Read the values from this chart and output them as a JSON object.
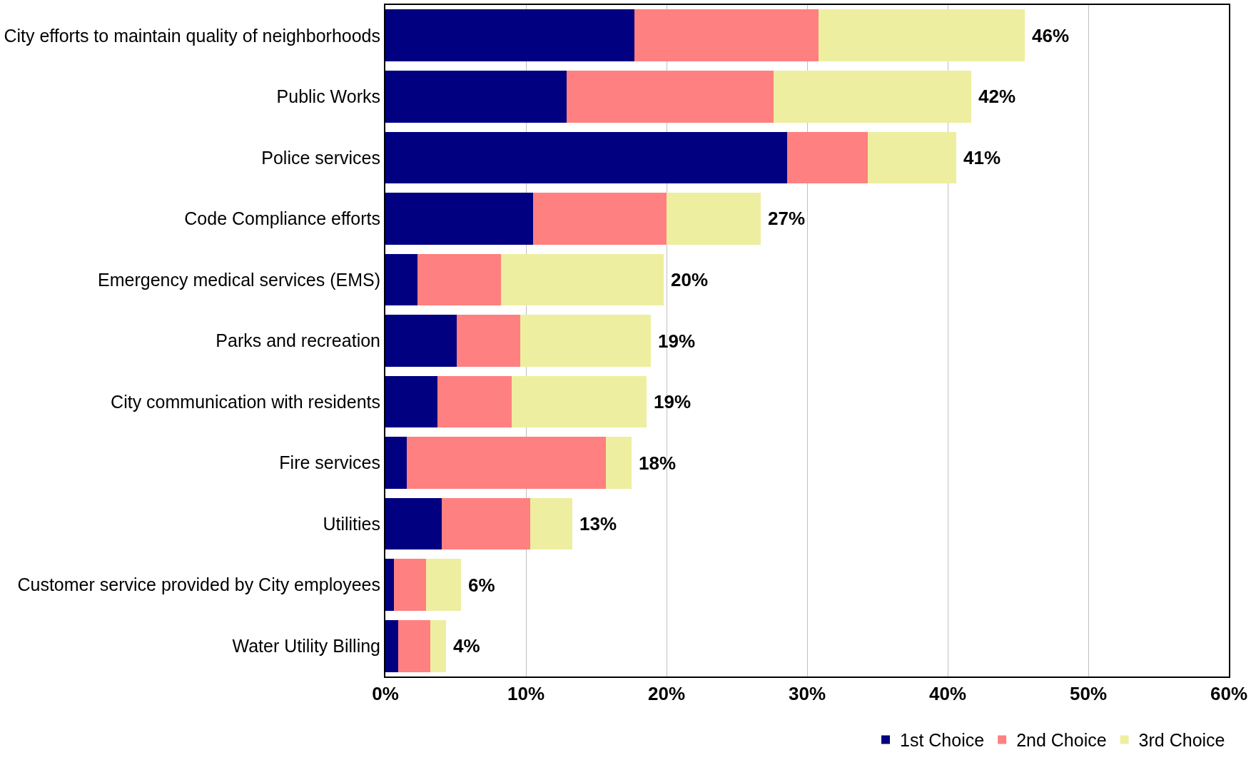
{
  "chart_data": {
    "type": "bar",
    "orientation": "horizontal",
    "stacked": true,
    "categories": [
      "City efforts to maintain quality of neighborhoods",
      "Public Works",
      "Police services",
      "Code Compliance efforts",
      "Emergency medical services (EMS)",
      "Parks and recreation",
      "City communication with residents",
      "Fire services",
      "Utilities",
      "Customer service provided by City employees",
      "Water Utility Billing"
    ],
    "series": [
      {
        "name": "1st Choice",
        "color": "#000080",
        "values": [
          17.7,
          12.9,
          28.6,
          10.5,
          2.3,
          5.1,
          3.7,
          1.5,
          4.0,
          0.6,
          0.9
        ]
      },
      {
        "name": "2nd Choice",
        "color": "#ff8080",
        "values": [
          13.1,
          14.7,
          5.7,
          9.5,
          5.9,
          4.5,
          5.3,
          14.2,
          6.3,
          2.3,
          2.3
        ]
      },
      {
        "name": "3rd Choice",
        "color": "#eeeea0",
        "values": [
          14.7,
          14.1,
          6.3,
          6.7,
          11.6,
          9.3,
          9.6,
          1.8,
          3.0,
          2.5,
          1.1
        ]
      }
    ],
    "totals": [
      "46%",
      "42%",
      "41%",
      "27%",
      "20%",
      "19%",
      "19%",
      "18%",
      "13%",
      "6%",
      "4%"
    ],
    "xlim": [
      0,
      60
    ],
    "xticks": [
      {
        "value": 0,
        "label": "0%"
      },
      {
        "value": 10,
        "label": "10%"
      },
      {
        "value": 20,
        "label": "20%"
      },
      {
        "value": 30,
        "label": "30%"
      },
      {
        "value": 40,
        "label": "40%"
      },
      {
        "value": 50,
        "label": "50%"
      },
      {
        "value": 60,
        "label": "60%"
      }
    ],
    "grid": "x",
    "legend": "bottom right"
  }
}
